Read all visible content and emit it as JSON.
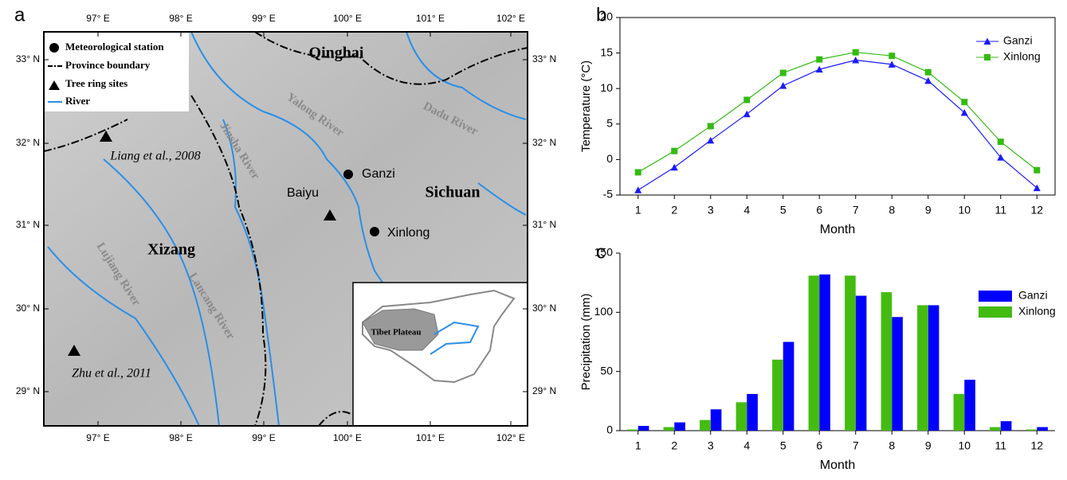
{
  "panel_labels": [
    "a",
    "b",
    "c"
  ],
  "map": {
    "legend": [
      "Meteorological station",
      "Province boundary",
      "Tree ring sites",
      "River"
    ],
    "lat_labels": [
      "33° N",
      "32° N",
      "31° N",
      "30° N",
      "29° N"
    ],
    "lon_labels": [
      "97° E",
      "98° E",
      "99° E",
      "100° E",
      "101° E",
      "102° E"
    ],
    "regions": [
      "Qinghai",
      "Sichuan",
      "Xizang"
    ],
    "stations": [
      "Ganzi",
      "Xinlong"
    ],
    "sites": [
      "Baiyu",
      "Liang et al., 2008",
      "Zhu et al., 2011"
    ],
    "rivers": [
      "Yalong River",
      "Dadu River",
      "Jinsha River",
      "Lancang River",
      "Lujiang River"
    ],
    "inset_label": "Tibet Plateau"
  },
  "chart_data": [
    {
      "type": "line",
      "x_label": "Month",
      "y_label": "Temperature (°C)",
      "categories": [
        1,
        2,
        3,
        4,
        5,
        6,
        7,
        8,
        9,
        10,
        11,
        12
      ],
      "series": [
        {
          "name": "Ganzi",
          "color": "#1a1aff",
          "marker": "triangle",
          "values": [
            -4.3,
            -1.1,
            2.7,
            6.4,
            10.4,
            12.7,
            14.0,
            13.4,
            11.1,
            6.6,
            0.3,
            -4.0
          ]
        },
        {
          "name": "Xinlong",
          "color": "#33bb11",
          "marker": "square",
          "values": [
            -1.8,
            1.2,
            4.7,
            8.4,
            12.2,
            14.1,
            15.1,
            14.6,
            12.3,
            8.1,
            2.5,
            -1.5
          ]
        }
      ],
      "ylim": [
        -5,
        20
      ],
      "yticks": [
        -5,
        0,
        5,
        10,
        15,
        20
      ]
    },
    {
      "type": "bar",
      "x_label": "Month",
      "y_label": "Precipitation (mm)",
      "categories": [
        1,
        2,
        3,
        4,
        5,
        6,
        7,
        8,
        9,
        10,
        11,
        12
      ],
      "series": [
        {
          "name": "Ganzi",
          "color": "#0000ff",
          "values": [
            4,
            7,
            18,
            31,
            75,
            132,
            114,
            96,
            106,
            43,
            8,
            3
          ]
        },
        {
          "name": "Xinlong",
          "color": "#44bb11",
          "values": [
            1,
            3,
            9,
            24,
            60,
            131,
            131,
            117,
            106,
            31,
            3,
            1
          ]
        }
      ],
      "ylim": [
        0,
        150
      ],
      "yticks": [
        0,
        50,
        100,
        150
      ]
    }
  ]
}
